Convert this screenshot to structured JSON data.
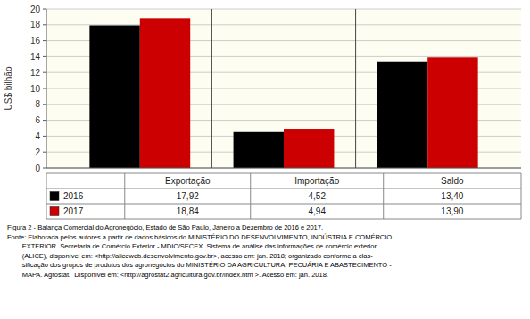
{
  "chart_data": {
    "type": "bar",
    "categories": [
      "Exportação",
      "Importação",
      "Saldo"
    ],
    "series": [
      {
        "name": "2016",
        "color": "#000000",
        "values": [
          17.92,
          4.52,
          13.4
        ],
        "value_labels": [
          "17,92",
          "4,52",
          "13,40"
        ]
      },
      {
        "name": "2017",
        "color": "#cc0000",
        "values": [
          18.84,
          4.94,
          13.9
        ],
        "value_labels": [
          "18,84",
          "4,94",
          "13,90"
        ]
      }
    ],
    "ylabel": "US$ bilhão",
    "ylim": [
      0,
      20
    ],
    "yticks": [
      0,
      2,
      4,
      6,
      8,
      10,
      12,
      14,
      16,
      18,
      20
    ],
    "grid": true,
    "data_labels": true,
    "annotations": [
      "Figura 2 - Balança Comercial do Agronegócio, Estado de São Paulo, Janeiro a Dezembro de 2016 e 2017.",
      "Fonte: Elaborada pelos autores a partir de dados básicos do MINISTÉRIO DO DESENVOLVIMENTO, INDÚSTRIA E COMÉRCIO",
      "        EXTERIOR. Secretaria de Comércio Exterior - MDIC/SECEX. Sistema de análise das informações de comércio exterior",
      "        (ALICE), disponível em: <http://aliceweb.desenvolvimento.gov.br>, acesso em: jan. 2018; organizado conforme a clas-",
      "        sificação dos grupos de produtos dos agronegócios do MINISTÉRIO DA AGRICULTURA, PECUÁRIA E ABASTECIMENTO -",
      "        MAPA. Agrostat.  Disponível em: <http://agrostat2.agricultura.gov.br/index.htm >. Acesso em: jan. 2018."
    ]
  }
}
